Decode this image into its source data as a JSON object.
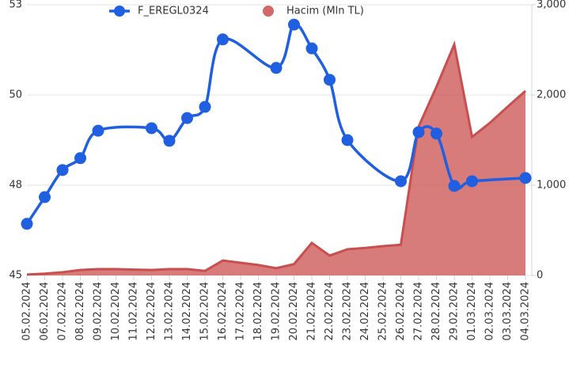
{
  "chart_data": {
    "type": "line",
    "categories": [
      "05.02.2024",
      "06.02.2024",
      "07.02.2024",
      "08.02.2024",
      "09.02.2024",
      "10.02.2024",
      "11.02.2024",
      "12.02.2024",
      "13.02.2024",
      "14.02.2024",
      "15.02.2024",
      "16.02.2024",
      "17.02.2024",
      "18.02.2024",
      "19.02.2024",
      "20.02.2024",
      "21.02.2024",
      "22.02.2024",
      "23.02.2024",
      "24.02.2024",
      "25.02.2024",
      "26.02.2024",
      "27.02.2024",
      "28.02.2024",
      "29.02.2024",
      "01.03.2024",
      "02.03.2024",
      "03.03.2024",
      "04.03.2024"
    ],
    "series": [
      {
        "name": "F_EREGL0324",
        "type": "line",
        "color": "#1f5fe0",
        "values": [
          46.43,
          47.17,
          47.92,
          48.25,
          49.01,
          null,
          null,
          49.08,
          48.73,
          49.36,
          49.67,
          51.54,
          null,
          null,
          50.75,
          51.95,
          51.29,
          50.42,
          48.75,
          null,
          null,
          47.61,
          48.97,
          48.93,
          47.48,
          47.61,
          null,
          null,
          47.7
        ]
      },
      {
        "name": "Hacim (Mln TL)",
        "type": "area",
        "axis": "y2",
        "color": "#c94f4f",
        "values": [
          10,
          20,
          35,
          60,
          70,
          70,
          65,
          60,
          70,
          70,
          50,
          165,
          140,
          115,
          80,
          125,
          360,
          220,
          290,
          305,
          325,
          340,
          1650,
          2090,
          2560,
          1535,
          1690,
          1870,
          2045
        ]
      }
    ],
    "ylim": [
      45,
      52.5
    ],
    "yticks": [
      45,
      {
        "value": 47.5,
        "label": "48"
      },
      50,
      {
        "value": 52.5,
        "label": "53"
      }
    ],
    "y2lim": [
      0,
      3000
    ],
    "y2ticks": [
      0,
      {
        "value": 1000,
        "label": "1,000"
      },
      {
        "value": 2000,
        "label": "2,000"
      },
      {
        "value": 3000,
        "label": "3,000"
      }
    ],
    "grid": true,
    "legend": "top"
  }
}
